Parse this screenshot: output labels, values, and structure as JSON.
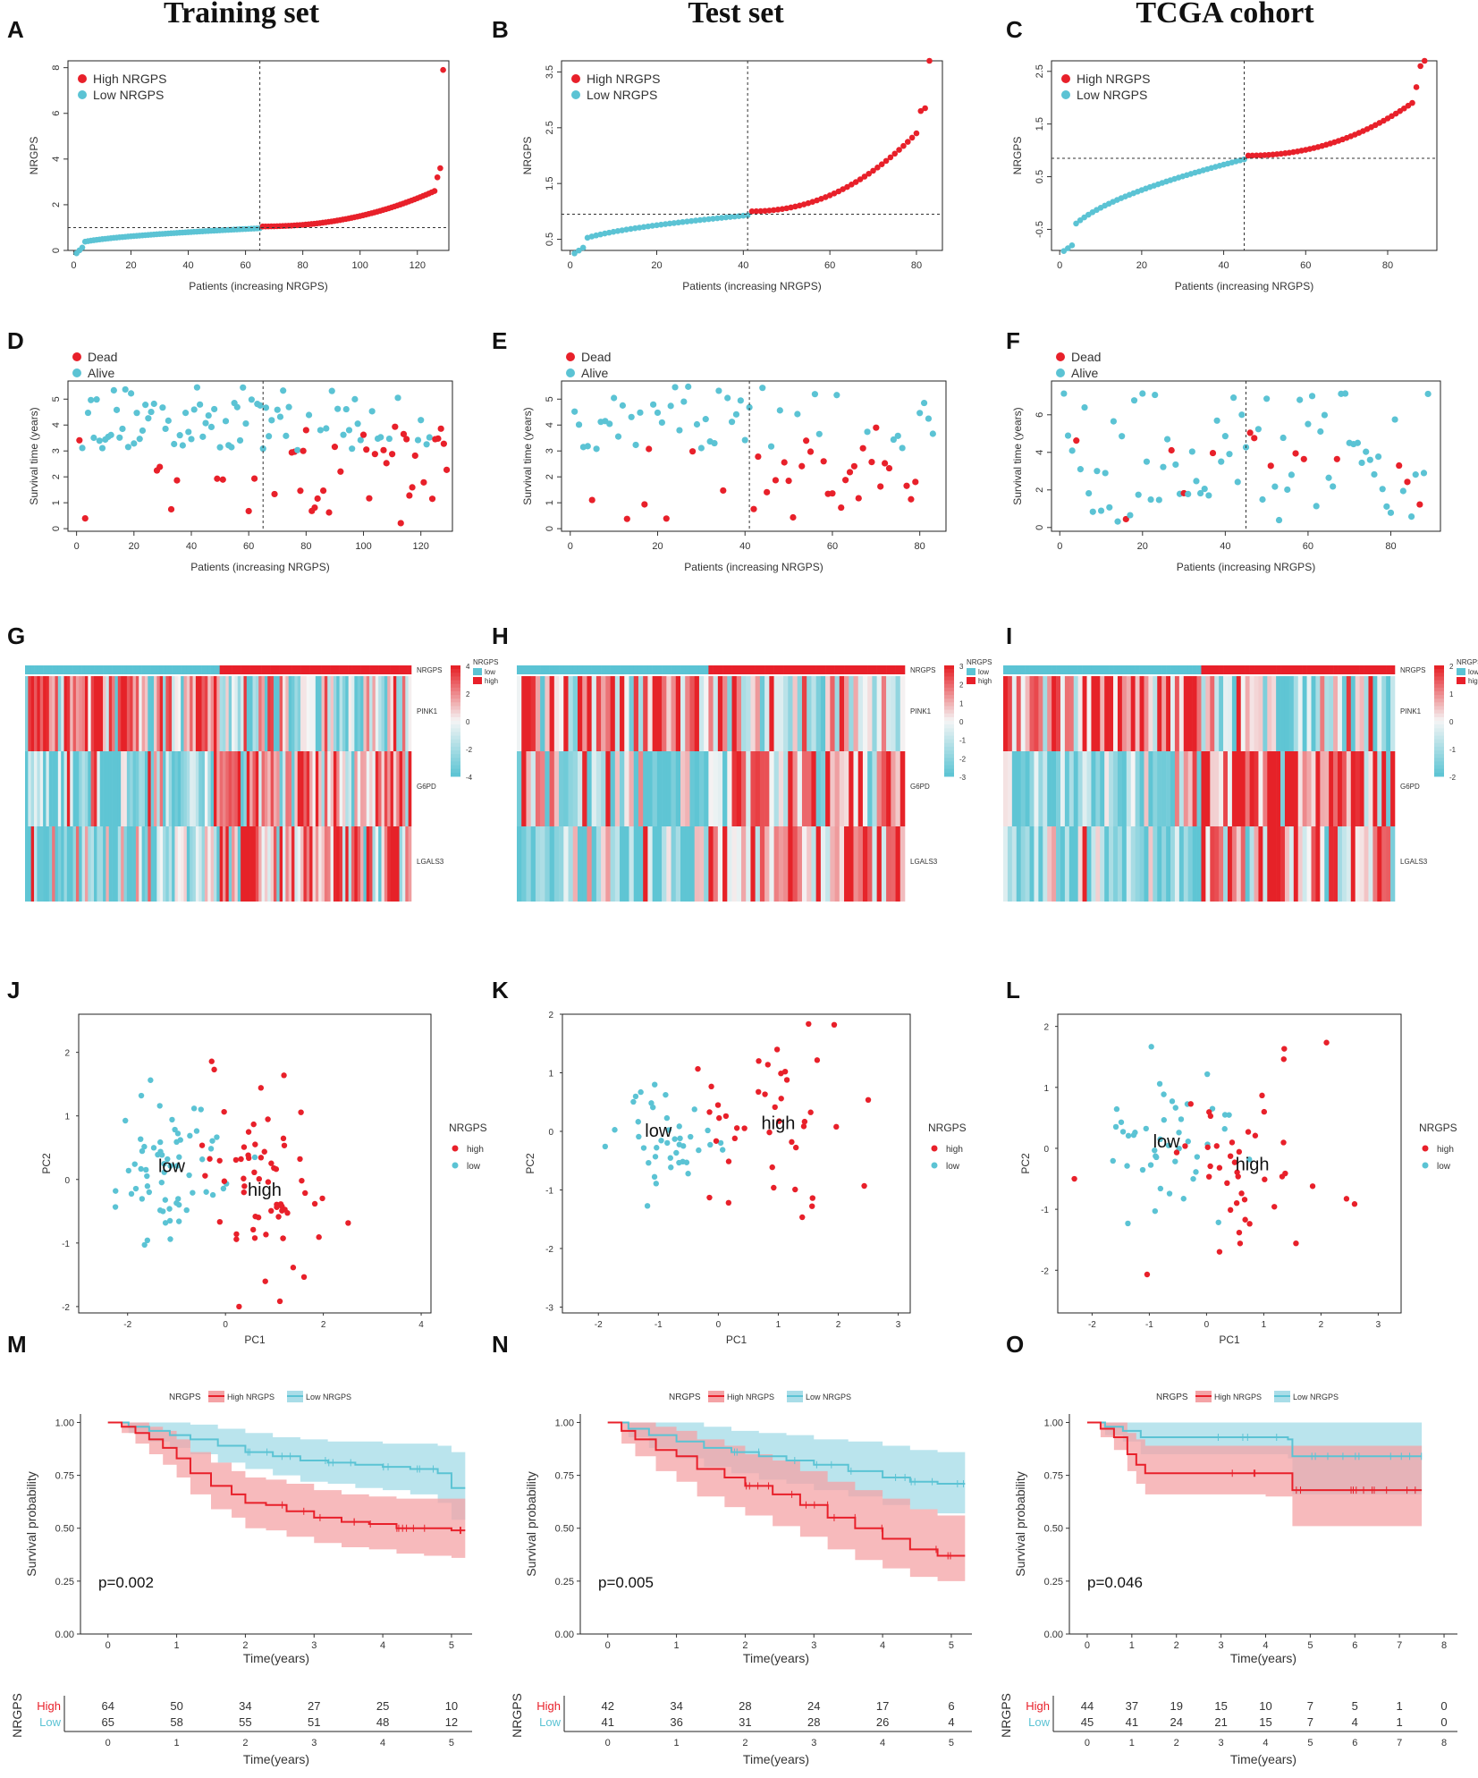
{
  "column_titles": [
    "Training set",
    "Test set",
    "TCGA cohort"
  ],
  "panel_labels": [
    "A",
    "B",
    "C",
    "D",
    "E",
    "F",
    "G",
    "H",
    "I",
    "J",
    "K",
    "L",
    "M",
    "N",
    "O"
  ],
  "colors": {
    "high": "#e8202a",
    "low": "#5bc3d4",
    "high_fill": "#f4a3a6",
    "low_fill": "#a9dde8",
    "overlap_fill": "#b9c0bd"
  },
  "chart_data": [
    {
      "id": "A",
      "type": "scatter",
      "subtype": "risk-score-curve",
      "title": "",
      "xlabel": "Patients (increasing NRGPS)",
      "ylabel": "NRGPS",
      "n": 129,
      "n_low": 65,
      "cutoff_index": 65,
      "cutoff_value": 1.0,
      "xlim": [
        -2,
        131
      ],
      "ylim": [
        0,
        8.3
      ],
      "xticks": [
        0,
        20,
        40,
        60,
        80,
        100,
        120
      ],
      "yticks": [
        0,
        2,
        4,
        6,
        8
      ],
      "curve": {
        "start": 0.25,
        "low_end": 0.97,
        "high_start": 1.05,
        "knee": 1.6,
        "knee_at": 100,
        "tail": [
          2.6,
          3.2,
          3.6
        ],
        "max": 7.9
      },
      "legend": [
        "High NRGPS",
        "Low NRGPS"
      ]
    },
    {
      "id": "B",
      "type": "scatter",
      "subtype": "risk-score-curve",
      "xlabel": "Patients (increasing NRGPS)",
      "ylabel": "NRGPS",
      "n": 83,
      "n_low": 41,
      "cutoff_index": 41,
      "cutoff_value": 0.95,
      "xlim": [
        -2,
        86
      ],
      "ylim": [
        0.3,
        3.7
      ],
      "xticks": [
        0,
        20,
        40,
        60,
        80
      ],
      "yticks": [
        0.5,
        1.5,
        2.5,
        3.5
      ],
      "curve": {
        "start": 0.4,
        "low_end": 0.93,
        "high_start": 1.0,
        "knee": 1.6,
        "knee_at": 70,
        "tail": [
          2.4,
          2.8,
          2.85
        ],
        "max": 3.7
      },
      "legend": [
        "High NRGPS",
        "Low NRGPS"
      ]
    },
    {
      "id": "C",
      "type": "scatter",
      "subtype": "risk-score-curve",
      "xlabel": "Patients (increasing NRGPS)",
      "ylabel": "NRGPS",
      "n": 89,
      "n_low": 45,
      "cutoff_index": 45,
      "cutoff_value": 0.85,
      "xlim": [
        -2,
        92
      ],
      "ylim": [
        -0.9,
        2.7
      ],
      "xticks": [
        0,
        20,
        40,
        60,
        80
      ],
      "yticks": [
        -0.5,
        0.5,
        1.5,
        2.5
      ],
      "curve": {
        "start": -0.75,
        "low_end": 0.83,
        "high_start": 0.9,
        "knee": 1.35,
        "knee_at": 70,
        "tail": [
          1.9,
          2.2,
          2.6
        ],
        "max": 2.7
      },
      "legend": [
        "High NRGPS",
        "Low NRGPS"
      ]
    },
    {
      "id": "D",
      "type": "scatter",
      "subtype": "survival-status",
      "xlabel": "Patients (increasing NRGPS)",
      "ylabel": "Survival time (years)",
      "n": 129,
      "cutoff_index": 65,
      "xlim": [
        -3,
        131
      ],
      "ylim": [
        -0.1,
        5.7
      ],
      "xticks": [
        0,
        20,
        40,
        60,
        80,
        100,
        120
      ],
      "yticks": [
        0,
        1,
        2,
        3,
        4,
        5
      ],
      "legend": [
        "Dead",
        "Alive"
      ],
      "dead_fraction_low": 0.15,
      "dead_fraction_high": 0.55,
      "max_time": 5.5
    },
    {
      "id": "E",
      "type": "scatter",
      "subtype": "survival-status",
      "xlabel": "Patients (increasing NRGPS)",
      "ylabel": "Survival time (years)",
      "n": 83,
      "cutoff_index": 41,
      "xlim": [
        -2,
        86
      ],
      "ylim": [
        -0.1,
        5.7
      ],
      "xticks": [
        0,
        20,
        40,
        60,
        80
      ],
      "yticks": [
        0,
        1,
        2,
        3,
        4,
        5
      ],
      "legend": [
        "Dead",
        "Alive"
      ],
      "dead_fraction_low": 0.2,
      "dead_fraction_high": 0.6,
      "max_time": 5.5
    },
    {
      "id": "F",
      "type": "scatter",
      "subtype": "survival-status",
      "xlabel": "Patients (increasing NRGPS)",
      "ylabel": "Survival time (years)",
      "n": 89,
      "cutoff_index": 45,
      "xlim": [
        -2,
        92
      ],
      "ylim": [
        -0.2,
        7.8
      ],
      "xticks": [
        0,
        20,
        40,
        60,
        80
      ],
      "yticks": [
        0,
        2,
        4,
        6
      ],
      "legend": [
        "Dead",
        "Alive"
      ],
      "dead_fraction_low": 0.1,
      "dead_fraction_high": 0.28,
      "max_time": 7.5
    },
    {
      "id": "G",
      "type": "heatmap",
      "genes": [
        "PINK1",
        "G6PD",
        "LGALS3"
      ],
      "annotation_label": "NRGPS",
      "n_low": 65,
      "n_high": 64,
      "colorbar_ticks": [
        4,
        2,
        0,
        -2,
        -4
      ],
      "legend_title": "NRGPS",
      "legend": [
        "low",
        "high"
      ]
    },
    {
      "id": "H",
      "type": "heatmap",
      "genes": [
        "PINK1",
        "G6PD",
        "LGALS3"
      ],
      "annotation_label": "NRGPS",
      "n_low": 41,
      "n_high": 42,
      "colorbar_ticks": [
        3,
        2,
        1,
        0,
        -1,
        -2,
        -3
      ],
      "legend_title": "NRGPS",
      "legend": [
        "low",
        "high"
      ]
    },
    {
      "id": "I",
      "type": "heatmap",
      "genes": [
        "PINK1",
        "G6PD",
        "LGALS3"
      ],
      "annotation_label": "NRGPS",
      "n_low": 45,
      "n_high": 44,
      "colorbar_ticks": [
        2,
        1,
        0,
        -1,
        -2
      ],
      "legend_title": "NRGPS",
      "legend": [
        "low",
        "high"
      ]
    },
    {
      "id": "J",
      "type": "scatter",
      "subtype": "pca",
      "xlabel": "PC1",
      "ylabel": "PC2",
      "xlim": [
        -3.0,
        4.2
      ],
      "ylim": [
        -2.1,
        2.6
      ],
      "xticks": [
        -2,
        0,
        2,
        4
      ],
      "yticks": [
        -2,
        -1,
        0,
        1,
        2
      ],
      "legend_title": "NRGPS",
      "legend": [
        "high",
        "low"
      ],
      "group_labels": {
        "low": "low",
        "high": "high"
      },
      "low_center": [
        -1.1,
        0.2
      ],
      "high_center": [
        0.8,
        -0.2
      ],
      "n_low": 65,
      "n_high": 64
    },
    {
      "id": "K",
      "type": "scatter",
      "subtype": "pca",
      "xlabel": "PC1",
      "ylabel": "PC2",
      "xlim": [
        -2.6,
        3.2
      ],
      "ylim": [
        -3.1,
        2.0
      ],
      "xticks": [
        -2,
        -1,
        0,
        1,
        2,
        3
      ],
      "yticks": [
        -3,
        -2,
        -1,
        0,
        1,
        2
      ],
      "legend_title": "NRGPS",
      "legend": [
        "high",
        "low"
      ],
      "group_labels": {
        "low": "low",
        "high": "high"
      },
      "low_center": [
        -1.0,
        0.0
      ],
      "high_center": [
        1.0,
        0.1
      ],
      "n_low": 41,
      "n_high": 42
    },
    {
      "id": "L",
      "type": "scatter",
      "subtype": "pca",
      "xlabel": "PC1",
      "ylabel": "PC2",
      "xlim": [
        -2.6,
        3.4
      ],
      "ylim": [
        -2.7,
        2.2
      ],
      "xticks": [
        -2,
        -1,
        0,
        1,
        2,
        3
      ],
      "yticks": [
        -2,
        -1,
        0,
        1,
        2
      ],
      "legend_title": "NRGPS",
      "legend": [
        "high",
        "low"
      ],
      "group_labels": {
        "low": "low",
        "high": "high"
      },
      "low_center": [
        -0.7,
        0.1
      ],
      "high_center": [
        0.8,
        -0.3
      ],
      "n_low": 45,
      "n_high": 44
    },
    {
      "id": "M",
      "type": "line",
      "subtype": "kaplan-meier",
      "xlabel": "Time(years)",
      "ylabel": "Survival probability",
      "xlim": [
        -0.4,
        5.3
      ],
      "ylim": [
        0,
        1.0
      ],
      "xticks": [
        0,
        1,
        2,
        3,
        4,
        5
      ],
      "yticks": [
        0.0,
        0.25,
        0.5,
        0.75,
        1.0
      ],
      "legend_title": "NRGPS",
      "legend": [
        "High NRGPS",
        "Low NRGPS"
      ],
      "pvalue": "p=0.002",
      "series": [
        {
          "name": "High NRGPS",
          "x": [
            0,
            0.2,
            0.4,
            0.6,
            0.8,
            1.0,
            1.2,
            1.5,
            1.8,
            2.0,
            2.3,
            2.6,
            3.0,
            3.4,
            3.8,
            4.2,
            4.6,
            5.0,
            5.2
          ],
          "y": [
            1.0,
            0.98,
            0.95,
            0.92,
            0.88,
            0.83,
            0.76,
            0.7,
            0.66,
            0.62,
            0.61,
            0.58,
            0.55,
            0.53,
            0.52,
            0.5,
            0.5,
            0.49,
            0.49
          ],
          "lower": [
            1.0,
            0.95,
            0.9,
            0.85,
            0.8,
            0.74,
            0.66,
            0.59,
            0.55,
            0.5,
            0.49,
            0.46,
            0.43,
            0.41,
            0.4,
            0.38,
            0.37,
            0.36,
            0.36
          ],
          "upper": [
            1.0,
            1.0,
            1.0,
            0.98,
            0.96,
            0.92,
            0.86,
            0.81,
            0.77,
            0.74,
            0.73,
            0.71,
            0.68,
            0.66,
            0.65,
            0.64,
            0.64,
            0.64,
            0.64
          ]
        },
        {
          "name": "Low NRGPS",
          "x": [
            0,
            0.3,
            0.6,
            0.9,
            1.2,
            1.6,
            2.0,
            2.4,
            2.8,
            3.2,
            3.6,
            4.0,
            4.4,
            4.8,
            5.0,
            5.2
          ],
          "y": [
            1.0,
            0.98,
            0.96,
            0.94,
            0.92,
            0.89,
            0.86,
            0.84,
            0.82,
            0.81,
            0.8,
            0.79,
            0.78,
            0.76,
            0.69,
            0.69
          ],
          "lower": [
            1.0,
            0.95,
            0.91,
            0.88,
            0.85,
            0.81,
            0.78,
            0.75,
            0.72,
            0.71,
            0.69,
            0.68,
            0.66,
            0.62,
            0.54,
            0.54
          ],
          "upper": [
            1.0,
            1.0,
            1.0,
            1.0,
            0.99,
            0.97,
            0.95,
            0.93,
            0.92,
            0.91,
            0.91,
            0.9,
            0.9,
            0.89,
            0.86,
            0.86
          ]
        }
      ],
      "risk_table": {
        "label": "NRGPS",
        "times": [
          0,
          1,
          2,
          3,
          4,
          5
        ],
        "rows": [
          {
            "name": "High",
            "values": [
              64,
              50,
              34,
              27,
              25,
              10
            ]
          },
          {
            "name": "Low",
            "values": [
              65,
              58,
              55,
              51,
              48,
              12
            ]
          }
        ]
      }
    },
    {
      "id": "N",
      "type": "line",
      "subtype": "kaplan-meier",
      "xlabel": "Time(years)",
      "ylabel": "Survival probability",
      "xlim": [
        -0.4,
        5.3
      ],
      "ylim": [
        0,
        1.0
      ],
      "xticks": [
        0,
        1,
        2,
        3,
        4,
        5
      ],
      "yticks": [
        0.0,
        0.25,
        0.5,
        0.75,
        1.0
      ],
      "legend_title": "NRGPS",
      "legend": [
        "High NRGPS",
        "Low NRGPS"
      ],
      "pvalue": "p=0.005",
      "series": [
        {
          "name": "High NRGPS",
          "x": [
            0,
            0.2,
            0.4,
            0.7,
            1.0,
            1.3,
            1.7,
            2.0,
            2.4,
            2.8,
            3.2,
            3.6,
            4.0,
            4.4,
            4.8,
            5.2
          ],
          "y": [
            1.0,
            0.96,
            0.92,
            0.87,
            0.84,
            0.78,
            0.74,
            0.7,
            0.66,
            0.61,
            0.55,
            0.5,
            0.45,
            0.4,
            0.37,
            0.37
          ],
          "lower": [
            1.0,
            0.9,
            0.84,
            0.77,
            0.72,
            0.65,
            0.6,
            0.56,
            0.51,
            0.46,
            0.4,
            0.35,
            0.31,
            0.27,
            0.25,
            0.25
          ],
          "upper": [
            1.0,
            1.0,
            1.0,
            0.98,
            0.96,
            0.92,
            0.89,
            0.85,
            0.82,
            0.77,
            0.72,
            0.68,
            0.64,
            0.59,
            0.56,
            0.56
          ]
        },
        {
          "name": "Low NRGPS",
          "x": [
            0,
            0.3,
            0.6,
            1.0,
            1.4,
            1.8,
            2.2,
            2.6,
            3.0,
            3.5,
            4.0,
            4.4,
            4.8,
            5.2
          ],
          "y": [
            1.0,
            0.97,
            0.94,
            0.91,
            0.88,
            0.86,
            0.84,
            0.82,
            0.8,
            0.77,
            0.74,
            0.72,
            0.71,
            0.71
          ],
          "lower": [
            1.0,
            0.93,
            0.88,
            0.83,
            0.79,
            0.76,
            0.73,
            0.71,
            0.68,
            0.65,
            0.61,
            0.59,
            0.57,
            0.57
          ],
          "upper": [
            1.0,
            1.0,
            1.0,
            1.0,
            0.98,
            0.96,
            0.95,
            0.94,
            0.92,
            0.91,
            0.89,
            0.87,
            0.86,
            0.86
          ]
        }
      ],
      "risk_table": {
        "label": "NRGPS",
        "times": [
          0,
          1,
          2,
          3,
          4,
          5
        ],
        "rows": [
          {
            "name": "High",
            "values": [
              42,
              34,
              28,
              24,
              17,
              6
            ]
          },
          {
            "name": "Low",
            "values": [
              41,
              36,
              31,
              28,
              26,
              4
            ]
          }
        ]
      }
    },
    {
      "id": "O",
      "type": "line",
      "subtype": "kaplan-meier",
      "xlabel": "Time(years)",
      "ylabel": "Survival probability",
      "xlim": [
        -0.4,
        8.3
      ],
      "ylim": [
        0,
        1.0
      ],
      "xticks": [
        0,
        1,
        2,
        3,
        4,
        5,
        6,
        7,
        8
      ],
      "yticks": [
        0.0,
        0.25,
        0.5,
        0.75,
        1.0
      ],
      "legend_title": "NRGPS",
      "legend": [
        "High NRGPS",
        "Low NRGPS"
      ],
      "pvalue": "p=0.046",
      "series": [
        {
          "name": "High NRGPS",
          "x": [
            0,
            0.3,
            0.6,
            0.9,
            1.1,
            1.3,
            2.0,
            3.0,
            4.0,
            4.6,
            5.5,
            6.5,
            7.5
          ],
          "y": [
            1.0,
            0.97,
            0.93,
            0.85,
            0.8,
            0.76,
            0.76,
            0.76,
            0.76,
            0.68,
            0.68,
            0.68,
            0.68
          ],
          "lower": [
            1.0,
            0.93,
            0.87,
            0.77,
            0.71,
            0.66,
            0.66,
            0.66,
            0.65,
            0.51,
            0.51,
            0.51,
            0.51
          ],
          "upper": [
            1.0,
            1.0,
            1.0,
            0.95,
            0.92,
            0.89,
            0.89,
            0.89,
            0.89,
            0.89,
            0.89,
            0.89,
            0.89
          ]
        },
        {
          "name": "Low NRGPS",
          "x": [
            0,
            0.4,
            0.8,
            1.2,
            1.8,
            2.5,
            3.5,
            4.5,
            4.6,
            5.5,
            6.5,
            7.5
          ],
          "y": [
            1.0,
            0.98,
            0.96,
            0.93,
            0.93,
            0.93,
            0.93,
            0.92,
            0.84,
            0.84,
            0.84,
            0.84
          ],
          "lower": [
            1.0,
            0.94,
            0.91,
            0.85,
            0.85,
            0.85,
            0.85,
            0.83,
            0.66,
            0.66,
            0.66,
            0.66
          ],
          "upper": [
            1.0,
            1.0,
            1.0,
            1.0,
            1.0,
            1.0,
            1.0,
            1.0,
            1.0,
            1.0,
            1.0,
            1.0
          ]
        }
      ],
      "risk_table": {
        "label": "NRGPS",
        "times": [
          0,
          1,
          2,
          3,
          4,
          5,
          6,
          7,
          8
        ],
        "rows": [
          {
            "name": "High",
            "values": [
              44,
              37,
              19,
              15,
              10,
              7,
              5,
              1,
              0
            ]
          },
          {
            "name": "Low",
            "values": [
              45,
              41,
              24,
              21,
              15,
              7,
              4,
              1,
              0
            ]
          }
        ]
      }
    }
  ]
}
